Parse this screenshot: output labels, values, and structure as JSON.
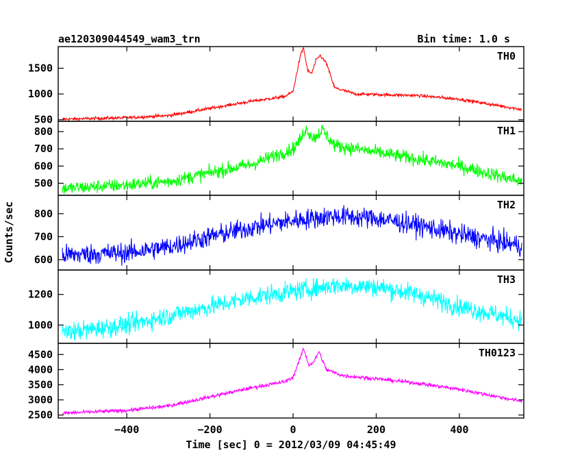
{
  "header": {
    "left": "ae120309044549_wam3_trn",
    "right": "Bin time: 1.0 s"
  },
  "axes": {
    "xlabel": "Time [sec] 0 = 2012/03/09 04:45:49",
    "ylabel": "Counts/sec",
    "xlim": [
      -565,
      555
    ],
    "xticks": [
      -400,
      -200,
      0,
      200,
      400
    ]
  },
  "chart_data": [
    {
      "type": "line",
      "series": [
        {
          "name": "TH0",
          "color": "#ff0000"
        }
      ],
      "ylim": [
        470,
        1920
      ],
      "yticks": [
        500,
        1000,
        1500
      ],
      "x_step": 1,
      "x_range": [
        -555,
        550
      ],
      "noise": 22,
      "profile": [
        {
          "x": -555,
          "y": 510
        },
        {
          "x": -400,
          "y": 540
        },
        {
          "x": -300,
          "y": 580
        },
        {
          "x": -200,
          "y": 720
        },
        {
          "x": -100,
          "y": 860
        },
        {
          "x": -20,
          "y": 950
        },
        {
          "x": 0,
          "y": 1050
        },
        {
          "x": 10,
          "y": 1450
        },
        {
          "x": 18,
          "y": 1750
        },
        {
          "x": 25,
          "y": 1900
        },
        {
          "x": 35,
          "y": 1450
        },
        {
          "x": 45,
          "y": 1400
        },
        {
          "x": 55,
          "y": 1650
        },
        {
          "x": 65,
          "y": 1750
        },
        {
          "x": 80,
          "y": 1600
        },
        {
          "x": 100,
          "y": 1120
        },
        {
          "x": 150,
          "y": 1000
        },
        {
          "x": 300,
          "y": 970
        },
        {
          "x": 400,
          "y": 900
        },
        {
          "x": 550,
          "y": 700
        }
      ]
    },
    {
      "type": "line",
      "series": [
        {
          "name": "TH1",
          "color": "#00ff00"
        }
      ],
      "ylim": [
        430,
        860
      ],
      "yticks": [
        500,
        600,
        700,
        800
      ],
      "x_step": 1,
      "x_range": [
        -555,
        550
      ],
      "noise": 28,
      "profile": [
        {
          "x": -555,
          "y": 470
        },
        {
          "x": -400,
          "y": 490
        },
        {
          "x": -300,
          "y": 510
        },
        {
          "x": -200,
          "y": 560
        },
        {
          "x": -100,
          "y": 610
        },
        {
          "x": 0,
          "y": 700
        },
        {
          "x": 20,
          "y": 760
        },
        {
          "x": 30,
          "y": 820
        },
        {
          "x": 50,
          "y": 760
        },
        {
          "x": 70,
          "y": 810
        },
        {
          "x": 100,
          "y": 720
        },
        {
          "x": 200,
          "y": 680
        },
        {
          "x": 300,
          "y": 640
        },
        {
          "x": 400,
          "y": 600
        },
        {
          "x": 550,
          "y": 510
        }
      ]
    },
    {
      "type": "line",
      "series": [
        {
          "name": "TH2",
          "color": "#0000ff"
        }
      ],
      "ylim": [
        555,
        880
      ],
      "yticks": [
        600,
        700,
        800
      ],
      "x_step": 1,
      "x_range": [
        -555,
        550
      ],
      "noise": 32,
      "profile": [
        {
          "x": -555,
          "y": 620
        },
        {
          "x": -400,
          "y": 630
        },
        {
          "x": -300,
          "y": 655
        },
        {
          "x": -200,
          "y": 700
        },
        {
          "x": -100,
          "y": 740
        },
        {
          "x": 0,
          "y": 770
        },
        {
          "x": 100,
          "y": 790
        },
        {
          "x": 200,
          "y": 780
        },
        {
          "x": 300,
          "y": 750
        },
        {
          "x": 400,
          "y": 710
        },
        {
          "x": 550,
          "y": 660
        }
      ]
    },
    {
      "type": "line",
      "series": [
        {
          "name": "TH3",
          "color": "#00ffff"
        }
      ],
      "ylim": [
        880,
        1360
      ],
      "yticks": [
        1000,
        1200
      ],
      "x_step": 1,
      "x_range": [
        -555,
        550
      ],
      "noise": 45,
      "profile": [
        {
          "x": -555,
          "y": 950
        },
        {
          "x": -400,
          "y": 1000
        },
        {
          "x": -300,
          "y": 1060
        },
        {
          "x": -200,
          "y": 1120
        },
        {
          "x": -100,
          "y": 1180
        },
        {
          "x": 0,
          "y": 1220
        },
        {
          "x": 100,
          "y": 1260
        },
        {
          "x": 200,
          "y": 1250
        },
        {
          "x": 300,
          "y": 1200
        },
        {
          "x": 400,
          "y": 1120
        },
        {
          "x": 550,
          "y": 1030
        }
      ]
    },
    {
      "type": "line",
      "series": [
        {
          "name": "TH0123",
          "color": "#ff00ff"
        }
      ],
      "ylim": [
        2400,
        4870
      ],
      "yticks": [
        2500,
        3000,
        3500,
        4000,
        4500
      ],
      "x_step": 1,
      "x_range": [
        -555,
        550
      ],
      "noise": 45,
      "profile": [
        {
          "x": -555,
          "y": 2560
        },
        {
          "x": -400,
          "y": 2650
        },
        {
          "x": -300,
          "y": 2800
        },
        {
          "x": -200,
          "y": 3100
        },
        {
          "x": -100,
          "y": 3400
        },
        {
          "x": -20,
          "y": 3600
        },
        {
          "x": 0,
          "y": 3750
        },
        {
          "x": 15,
          "y": 4300
        },
        {
          "x": 25,
          "y": 4700
        },
        {
          "x": 38,
          "y": 4150
        },
        {
          "x": 50,
          "y": 4250
        },
        {
          "x": 62,
          "y": 4600
        },
        {
          "x": 80,
          "y": 4000
        },
        {
          "x": 120,
          "y": 3800
        },
        {
          "x": 200,
          "y": 3700
        },
        {
          "x": 300,
          "y": 3550
        },
        {
          "x": 400,
          "y": 3350
        },
        {
          "x": 550,
          "y": 2950
        }
      ]
    }
  ]
}
